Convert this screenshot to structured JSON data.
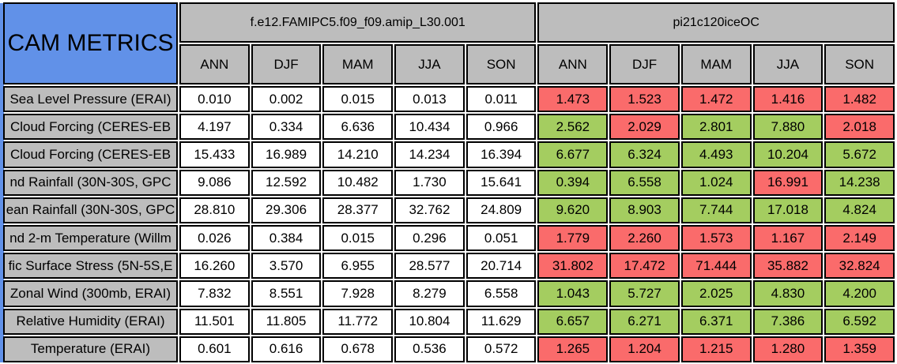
{
  "title": "CAM METRICS",
  "colors": {
    "header_blue": "#6191E8",
    "header_gray": "#BDBDBD",
    "bad_red": "#FA6B6B",
    "good_green": "#A4CD60"
  },
  "models": [
    {
      "name": "f.e12.FAMIPC5.f09_f09.amip_L30.001",
      "seasons": [
        "ANN",
        "DJF",
        "MAM",
        "JJA",
        "SON"
      ]
    },
    {
      "name": "pi21c120iceOC",
      "seasons": [
        "ANN",
        "DJF",
        "MAM",
        "JJA",
        "SON"
      ]
    }
  ],
  "rows": [
    {
      "label": "Sea Level Pressure (ERAI)",
      "model1": [
        "0.010",
        "0.002",
        "0.015",
        "0.013",
        "0.011"
      ],
      "model2": [
        "1.473",
        "1.523",
        "1.472",
        "1.416",
        "1.482"
      ],
      "model2_colors": [
        "red",
        "red",
        "red",
        "red",
        "red"
      ]
    },
    {
      "label": "Cloud Forcing (CERES-EB",
      "model1": [
        "4.197",
        "0.334",
        "6.636",
        "10.434",
        "0.966"
      ],
      "model2": [
        "2.562",
        "2.029",
        "2.801",
        "7.880",
        "2.018"
      ],
      "model2_colors": [
        "green",
        "red",
        "green",
        "green",
        "red"
      ]
    },
    {
      "label": "Cloud Forcing (CERES-EB",
      "model1": [
        "15.433",
        "16.989",
        "14.210",
        "14.234",
        "16.394"
      ],
      "model2": [
        "6.677",
        "6.324",
        "4.493",
        "10.204",
        "5.672"
      ],
      "model2_colors": [
        "green",
        "green",
        "green",
        "green",
        "green"
      ]
    },
    {
      "label": "nd Rainfall (30N-30S, GPC",
      "model1": [
        "9.086",
        "12.592",
        "10.482",
        "1.730",
        "15.641"
      ],
      "model2": [
        "0.394",
        "6.558",
        "1.024",
        "16.991",
        "14.238"
      ],
      "model2_colors": [
        "green",
        "green",
        "green",
        "red",
        "green"
      ]
    },
    {
      "label": "ean Rainfall (30N-30S, GPC",
      "model1": [
        "28.810",
        "29.306",
        "28.377",
        "32.762",
        "24.809"
      ],
      "model2": [
        "9.620",
        "8.903",
        "7.744",
        "17.018",
        "4.824"
      ],
      "model2_colors": [
        "green",
        "green",
        "green",
        "green",
        "green"
      ]
    },
    {
      "label": "nd 2-m Temperature (Willm",
      "model1": [
        "0.026",
        "0.384",
        "0.015",
        "0.296",
        "0.051"
      ],
      "model2": [
        "1.779",
        "2.260",
        "1.573",
        "1.167",
        "2.149"
      ],
      "model2_colors": [
        "red",
        "red",
        "red",
        "red",
        "red"
      ]
    },
    {
      "label": "fic Surface Stress (5N-5S,E",
      "model1": [
        "16.260",
        "3.570",
        "6.955",
        "28.577",
        "20.714"
      ],
      "model2": [
        "31.802",
        "17.472",
        "71.444",
        "35.882",
        "32.824"
      ],
      "model2_colors": [
        "red",
        "red",
        "red",
        "red",
        "red"
      ]
    },
    {
      "label": "Zonal Wind (300mb, ERAI)",
      "model1": [
        "7.832",
        "8.551",
        "7.928",
        "8.279",
        "6.558"
      ],
      "model2": [
        "1.043",
        "5.727",
        "2.025",
        "4.830",
        "4.200"
      ],
      "model2_colors": [
        "green",
        "green",
        "green",
        "green",
        "green"
      ]
    },
    {
      "label": "Relative Humidity (ERAI)",
      "model1": [
        "11.501",
        "11.805",
        "11.772",
        "10.804",
        "11.629"
      ],
      "model2": [
        "6.657",
        "6.271",
        "6.371",
        "7.386",
        "6.592"
      ],
      "model2_colors": [
        "green",
        "green",
        "green",
        "green",
        "green"
      ]
    },
    {
      "label": "Temperature (ERAI)",
      "model1": [
        "0.601",
        "0.616",
        "0.678",
        "0.536",
        "0.572"
      ],
      "model2": [
        "1.265",
        "1.204",
        "1.215",
        "1.280",
        "1.359"
      ],
      "model2_colors": [
        "red",
        "red",
        "red",
        "red",
        "red"
      ]
    }
  ],
  "chart_data": {
    "type": "table",
    "title": "CAM METRICS",
    "column_groups": [
      "f.e12.FAMIPC5.f09_f09.amip_L30.001",
      "pi21c120iceOC"
    ],
    "columns": [
      "ANN",
      "DJF",
      "MAM",
      "JJA",
      "SON",
      "ANN",
      "DJF",
      "MAM",
      "JJA",
      "SON"
    ],
    "row_labels": [
      "Sea Level Pressure (ERAI)",
      "Cloud Forcing (CERES-EB",
      "Cloud Forcing (CERES-EB",
      "nd Rainfall (30N-30S, GPC",
      "ean Rainfall (30N-30S, GPC",
      "nd 2-m Temperature (Willm",
      "fic Surface Stress (5N-5S,E",
      "Zonal Wind (300mb, ERAI)",
      "Relative Humidity (ERAI)",
      "Temperature (ERAI)"
    ],
    "values": [
      [
        0.01,
        0.002,
        0.015,
        0.013,
        0.011,
        1.473,
        1.523,
        1.472,
        1.416,
        1.482
      ],
      [
        4.197,
        0.334,
        6.636,
        10.434,
        0.966,
        2.562,
        2.029,
        2.801,
        7.88,
        2.018
      ],
      [
        15.433,
        16.989,
        14.21,
        14.234,
        16.394,
        6.677,
        6.324,
        4.493,
        10.204,
        5.672
      ],
      [
        9.086,
        12.592,
        10.482,
        1.73,
        15.641,
        0.394,
        6.558,
        1.024,
        16.991,
        14.238
      ],
      [
        28.81,
        29.306,
        28.377,
        32.762,
        24.809,
        9.62,
        8.903,
        7.744,
        17.018,
        4.824
      ],
      [
        0.026,
        0.384,
        0.015,
        0.296,
        0.051,
        1.779,
        2.26,
        1.573,
        1.167,
        2.149
      ],
      [
        16.26,
        3.57,
        6.955,
        28.577,
        20.714,
        31.802,
        17.472,
        71.444,
        35.882,
        32.824
      ],
      [
        7.832,
        8.551,
        7.928,
        8.279,
        6.558,
        1.043,
        5.727,
        2.025,
        4.83,
        4.2
      ],
      [
        11.501,
        11.805,
        11.772,
        10.804,
        11.629,
        6.657,
        6.271,
        6.371,
        7.386,
        6.592
      ],
      [
        0.601,
        0.616,
        0.678,
        0.536,
        0.572,
        1.265,
        1.204,
        1.215,
        1.28,
        1.359
      ]
    ],
    "cell_highlight_second_model": [
      [
        "red",
        "red",
        "red",
        "red",
        "red"
      ],
      [
        "green",
        "red",
        "green",
        "green",
        "red"
      ],
      [
        "green",
        "green",
        "green",
        "green",
        "green"
      ],
      [
        "green",
        "green",
        "green",
        "red",
        "green"
      ],
      [
        "green",
        "green",
        "green",
        "green",
        "green"
      ],
      [
        "red",
        "red",
        "red",
        "red",
        "red"
      ],
      [
        "red",
        "red",
        "red",
        "red",
        "red"
      ],
      [
        "green",
        "green",
        "green",
        "green",
        "green"
      ],
      [
        "green",
        "green",
        "green",
        "green",
        "green"
      ],
      [
        "red",
        "red",
        "red",
        "red",
        "red"
      ]
    ],
    "legend_position": "none",
    "grid": true
  }
}
